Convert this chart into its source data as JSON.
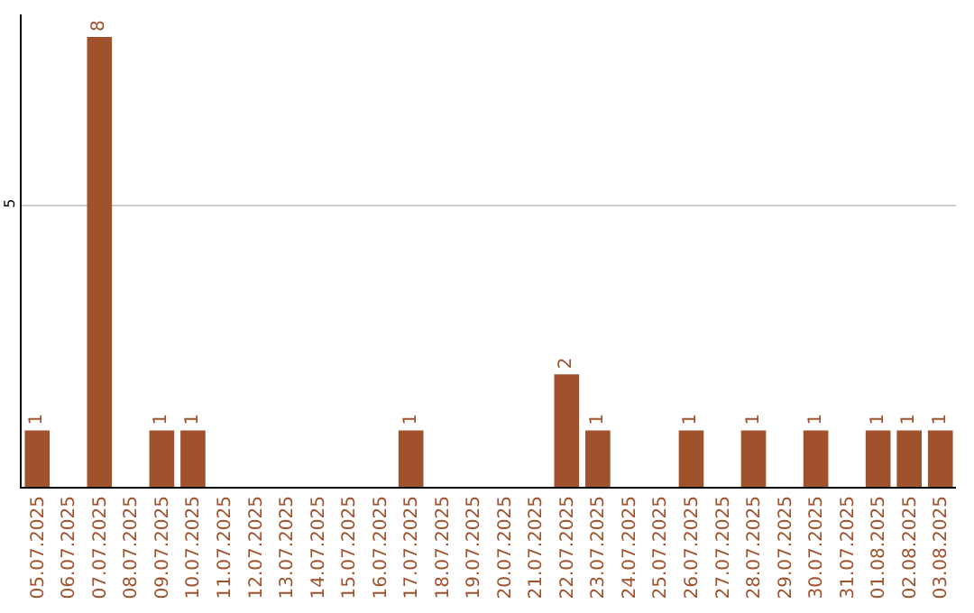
{
  "chart_data": {
    "type": "bar",
    "categories": [
      "05.07.2025",
      "06.07.2025",
      "07.07.2025",
      "08.07.2025",
      "09.07.2025",
      "10.07.2025",
      "11.07.2025",
      "12.07.2025",
      "13.07.2025",
      "14.07.2025",
      "15.07.2025",
      "16.07.2025",
      "17.07.2025",
      "18.07.2025",
      "19.07.2025",
      "20.07.2025",
      "21.07.2025",
      "22.07.2025",
      "23.07.2025",
      "24.07.2025",
      "25.07.2025",
      "26.07.2025",
      "27.07.2025",
      "28.07.2025",
      "29.07.2025",
      "30.07.2025",
      "31.07.2025",
      "01.08.2025",
      "02.08.2025",
      "03.08.2025"
    ],
    "values": [
      1,
      0,
      8,
      0,
      1,
      1,
      0,
      0,
      0,
      0,
      0,
      0,
      1,
      0,
      0,
      0,
      0,
      2,
      1,
      0,
      0,
      1,
      0,
      1,
      0,
      1,
      0,
      1,
      1,
      1
    ],
    "value_labels": [
      "1",
      null,
      "8",
      null,
      "1",
      "1",
      null,
      null,
      null,
      null,
      null,
      null,
      "1",
      null,
      null,
      null,
      null,
      "2",
      "1",
      null,
      null,
      "1",
      null,
      "1",
      null,
      "1",
      null,
      "1",
      "1",
      "1"
    ],
    "color": "#a0522d",
    "ylim": [
      0,
      8.4
    ],
    "yticks": [
      5
    ],
    "grid": "y"
  }
}
